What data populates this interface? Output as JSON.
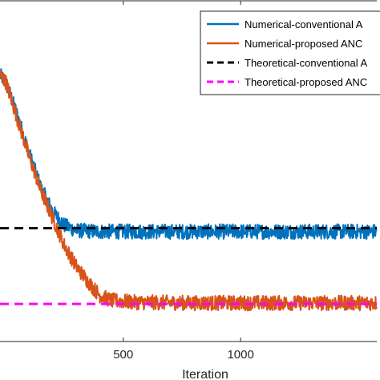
{
  "chart_data": {
    "type": "line",
    "xlabel": "Iteration",
    "ylabel": "",
    "xlim": [
      -25,
      1580
    ],
    "ylim": [
      0,
      1
    ],
    "xticks": [
      500,
      1000
    ],
    "grid": false,
    "legend_position": "top-right",
    "series": [
      {
        "name": "Numerical-conventional A",
        "color": "#0072BD",
        "style": "solid",
        "points": [
          [
            -25,
            0.78
          ],
          [
            0,
            0.76
          ],
          [
            50,
            0.66
          ],
          [
            100,
            0.55
          ],
          [
            150,
            0.45
          ],
          [
            200,
            0.38
          ],
          [
            250,
            0.34
          ],
          [
            300,
            0.325
          ],
          [
            400,
            0.322
          ],
          [
            800,
            0.322
          ],
          [
            1580,
            0.322
          ]
        ]
      },
      {
        "name": "Numerical-proposed ANC",
        "color": "#D95319",
        "style": "solid",
        "points": [
          [
            -25,
            0.78
          ],
          [
            0,
            0.76
          ],
          [
            50,
            0.65
          ],
          [
            100,
            0.54
          ],
          [
            150,
            0.44
          ],
          [
            200,
            0.36
          ],
          [
            250,
            0.28
          ],
          [
            300,
            0.22
          ],
          [
            350,
            0.175
          ],
          [
            400,
            0.135
          ],
          [
            450,
            0.12
          ],
          [
            550,
            0.115
          ],
          [
            800,
            0.113
          ],
          [
            1580,
            0.113
          ]
        ]
      },
      {
        "name": "Theoretical-conventional A",
        "color": "#000000",
        "style": "dashed",
        "points": [
          [
            -25,
            0.332
          ],
          [
            1580,
            0.332
          ]
        ]
      },
      {
        "name": "Theoretical-proposed ANC",
        "color": "#FF00FF",
        "style": "dashed",
        "points": [
          [
            -25,
            0.11
          ],
          [
            1580,
            0.11
          ]
        ]
      }
    ]
  }
}
